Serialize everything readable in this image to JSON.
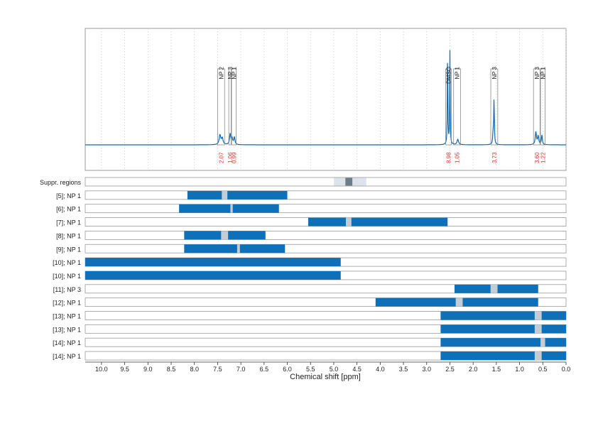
{
  "colors": {
    "spectrum": "#0e6aae",
    "bar_fill": "#0e70b8",
    "highlight": "#c4ccd4",
    "suppr_light": "#dce3ea",
    "suppr_dark": "#6e7c88",
    "integral_text": "#e8302a",
    "axis": "#333333",
    "frame": "#999999",
    "grid": "#cccccc"
  },
  "chart_data": {
    "type": "line",
    "xlabel": "Chemical shift [ppm]",
    "xlim": [
      10.35,
      0.0
    ],
    "x_reversed": true,
    "x_ticks": [
      "10.0",
      "9.5",
      "9.0",
      "8.5",
      "8.0",
      "7.5",
      "7.0",
      "6.5",
      "6.0",
      "5.5",
      "5.0",
      "4.5",
      "4.0",
      "3.5",
      "3.0",
      "2.5",
      "2.0",
      "1.5",
      "1.0",
      "0.5",
      "0.0"
    ],
    "grid": "vertical dotted",
    "spectrum": {
      "baseline": 0,
      "peaks": [
        {
          "x": 7.45,
          "h": 0.09,
          "w": 0.02
        },
        {
          "x": 7.4,
          "h": 0.06,
          "w": 0.02
        },
        {
          "x": 7.23,
          "h": 0.1,
          "w": 0.015
        },
        {
          "x": 7.19,
          "h": 0.06,
          "w": 0.015
        },
        {
          "x": 7.14,
          "h": 0.07,
          "w": 0.015
        },
        {
          "x": 2.55,
          "h": 0.96,
          "w": 0.006
        },
        {
          "x": 2.5,
          "h": 0.88,
          "w": 0.006
        },
        {
          "x": 2.33,
          "h": 0.05,
          "w": 0.02
        },
        {
          "x": 1.55,
          "h": 0.42,
          "w": 0.008
        },
        {
          "x": 1.57,
          "h": 0.1,
          "w": 0.01
        },
        {
          "x": 0.65,
          "h": 0.12,
          "w": 0.015
        },
        {
          "x": 0.6,
          "h": 0.08,
          "w": 0.015
        },
        {
          "x": 0.52,
          "h": 0.09,
          "w": 0.012
        }
      ]
    },
    "regions": [
      {
        "label": "NP 2",
        "from": 7.5,
        "to": 7.35,
        "integral": "2.07"
      },
      {
        "label": "NP 3",
        "from": 7.26,
        "to": 7.21,
        "integral": "1.06"
      },
      {
        "label": "NP 1",
        "from": 7.2,
        "to": 7.1,
        "integral": "0.99"
      },
      {
        "label": "DMSO",
        "from": 2.59,
        "to": 2.47,
        "integral": "8.98"
      },
      {
        "label": "NP 1",
        "from": 2.42,
        "to": 2.27,
        "integral": "1.05"
      },
      {
        "label": "NP 3",
        "from": 1.62,
        "to": 1.47,
        "integral": "3.73"
      },
      {
        "label": "NP 3",
        "from": 0.7,
        "to": 0.56,
        "integral": "3.60"
      },
      {
        "label": "NP 1",
        "from": 0.55,
        "to": 0.45,
        "integral": "1.22"
      }
    ],
    "rows": [
      {
        "label": "Suppr. regions",
        "type": "suppr",
        "from": 5.0,
        "to": 4.3,
        "inner_from": 4.75,
        "inner_to": 4.6
      },
      {
        "label": "[5]; NP 1",
        "from": 8.15,
        "to": 6.0,
        "mark": 7.35,
        "mark_w": 0.12
      },
      {
        "label": "[6]; NP 1",
        "from": 8.33,
        "to": 6.18,
        "mark": 7.2,
        "mark_w": 0.05
      },
      {
        "label": "[7]; NP 1",
        "from": 5.55,
        "to": 2.55,
        "mark": 4.68,
        "mark_w": 0.12
      },
      {
        "label": "[8]; NP 1",
        "from": 8.22,
        "to": 6.47,
        "mark": 7.35,
        "mark_w": 0.15
      },
      {
        "label": "[9]; NP 1",
        "from": 8.22,
        "to": 6.05,
        "mark": 7.05,
        "mark_w": 0.06
      },
      {
        "label": "[10]; NP 1",
        "from": 10.35,
        "to": 4.85
      },
      {
        "label": "[10]; NP 1",
        "from": 10.35,
        "to": 4.85
      },
      {
        "label": "[11]; NP 3",
        "from": 2.4,
        "to": 0.6,
        "mark": 1.55,
        "mark_w": 0.15
      },
      {
        "label": "[12]; NP 1",
        "from": 4.1,
        "to": 0.6,
        "mark": 2.3,
        "mark_w": 0.15
      },
      {
        "label": "[13]; NP 1",
        "from": 2.7,
        "to": 0.0,
        "mark": 0.6,
        "mark_w": 0.15
      },
      {
        "label": "[13]; NP 1",
        "from": 2.7,
        "to": 0.0,
        "mark": 0.6,
        "mark_w": 0.15
      },
      {
        "label": "[14]; NP 1",
        "from": 2.7,
        "to": 0.0,
        "mark": 0.5,
        "mark_w": 0.1
      },
      {
        "label": "[14]; NP 1",
        "from": 2.7,
        "to": 0.0,
        "mark": 0.6,
        "mark_w": 0.15
      }
    ]
  }
}
